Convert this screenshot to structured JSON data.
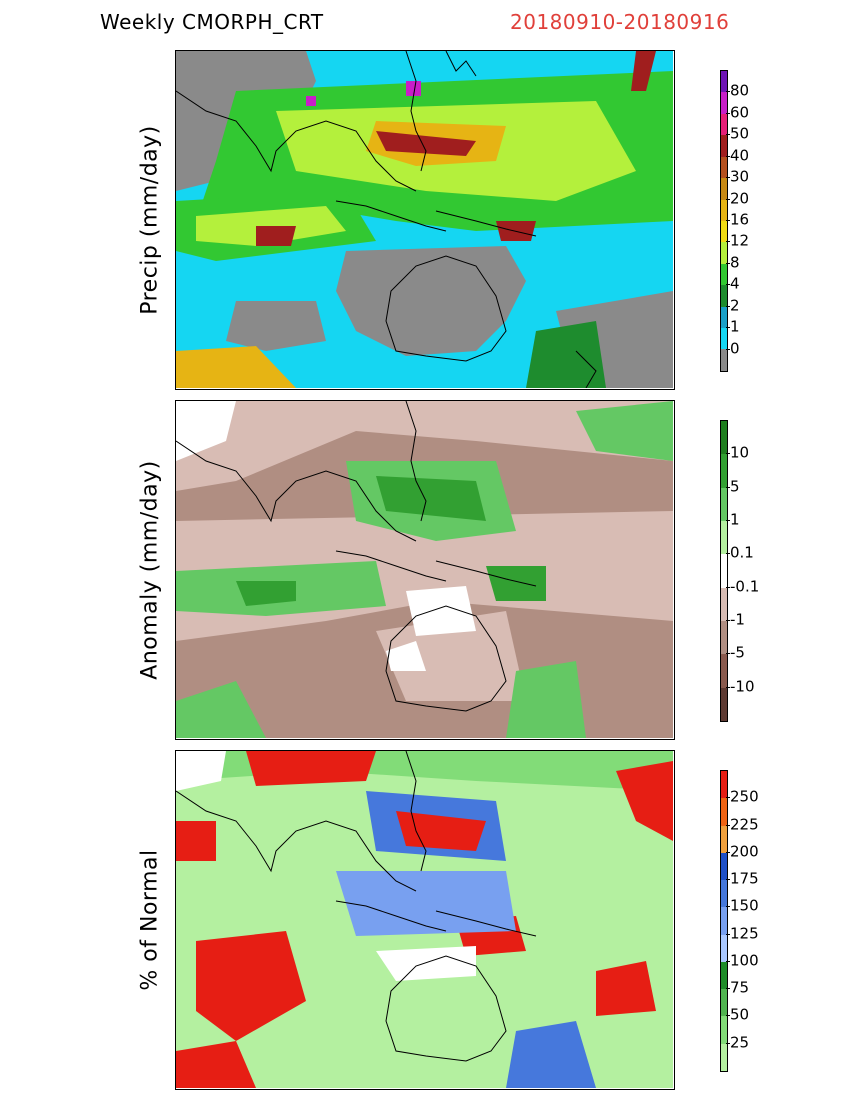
{
  "header": {
    "title": "Weekly CMORPH_CRT",
    "date_range": "20180910-20180916"
  },
  "panels": [
    {
      "id": "precip",
      "ylabel": "Precip (mm/day)",
      "colorbar": {
        "labels": [
          "0",
          "1",
          "2",
          "4",
          "8",
          "12",
          "16",
          "20",
          "30",
          "40",
          "50",
          "60",
          "80"
        ],
        "colors": [
          "#8a8a8a",
          "#15d6f2",
          "#1aa0c8",
          "#1e8c2e",
          "#32c832",
          "#b4f03c",
          "#f0dc14",
          "#e6b414",
          "#c88a14",
          "#b4501e",
          "#a01e1e",
          "#e61e78",
          "#c81ec8",
          "#6e14b4"
        ]
      }
    },
    {
      "id": "anomaly",
      "ylabel": "Anomaly (mm/day)",
      "colorbar": {
        "labels": [
          "-10",
          "-5",
          "-1",
          "-0.1",
          "0.1",
          "1",
          "5",
          "10"
        ],
        "colors": [
          "#5e3a32",
          "#8a5a4e",
          "#b08e82",
          "#d8bcb4",
          "#ffffff",
          "#b4f0a0",
          "#64c864",
          "#32a032",
          "#1e7e1e"
        ]
      }
    },
    {
      "id": "percent",
      "ylabel": "% of Normal",
      "colorbar": {
        "labels": [
          "25",
          "50",
          "75",
          "100",
          "125",
          "150",
          "175",
          "200",
          "225",
          "250"
        ],
        "colors": [
          "#b4f0a0",
          "#82dc78",
          "#50b450",
          "#1e8c28",
          "#aac8ff",
          "#78a0f0",
          "#4678dc",
          "#1e50c8",
          "#f0a03c",
          "#f06414",
          "#e61e14"
        ]
      }
    }
  ],
  "map_colors": {
    "land_outline": "#000000",
    "precip_bg": "#15d6f2",
    "precip_dry": "#8a8a8a",
    "anomaly_bg": "#b08e82",
    "percent_bg": "#b4f0a0"
  }
}
